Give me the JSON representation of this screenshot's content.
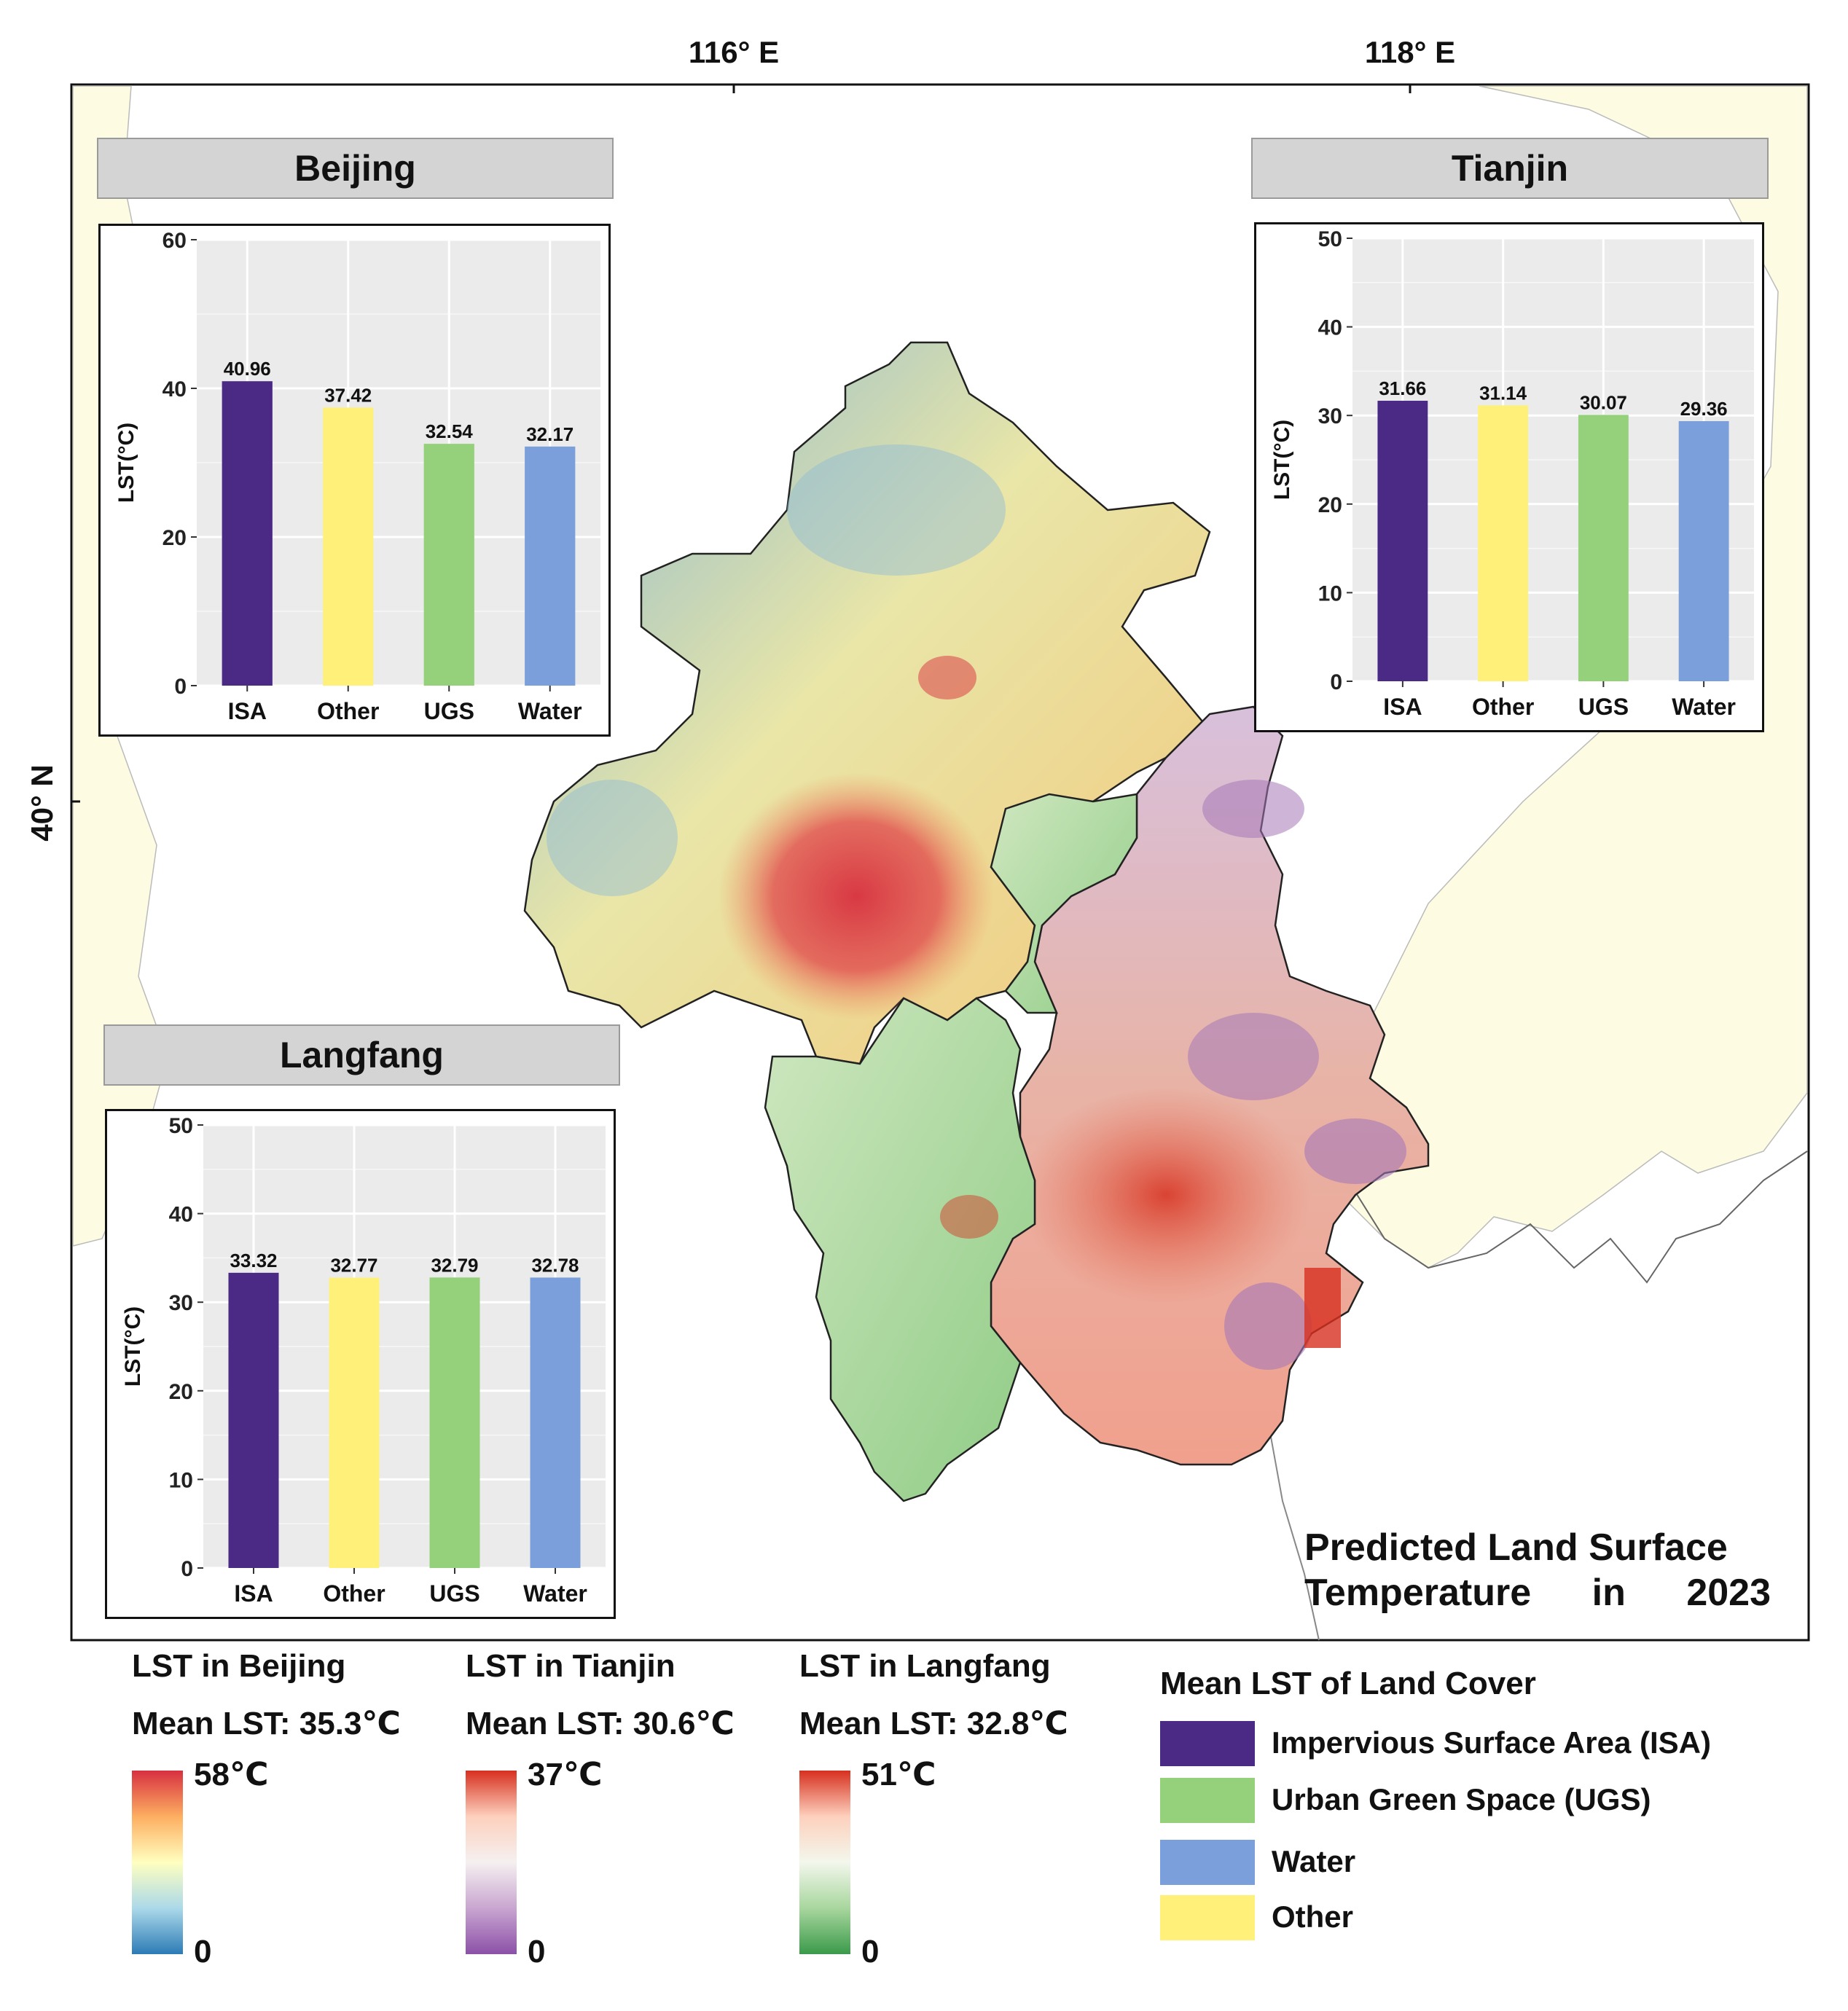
{
  "map": {
    "title_line1": "Predicted Land Surface",
    "title_line2": "Temperature in 2023",
    "lon_labels": [
      "116° E",
      "118° E"
    ],
    "lat_labels": [
      "40° N"
    ],
    "colors": {
      "land_background": "#fdfbe2",
      "frame": "#111111",
      "water": "#ffffff"
    }
  },
  "chart_data": [
    {
      "type": "bar",
      "title": "Beijing",
      "categories": [
        "ISA",
        "Other",
        "UGS",
        "Water"
      ],
      "values": [
        40.96,
        37.42,
        32.54,
        32.17
      ],
      "value_labels": [
        "40.96",
        "37.42",
        "32.54",
        "32.17"
      ],
      "ylabel": "LST(°C)",
      "xlabel": "",
      "ylim": [
        0,
        60
      ],
      "yticks": [
        0,
        20,
        40,
        60
      ],
      "colors": [
        "#4b2a86",
        "#fff07a",
        "#94d17a",
        "#7a9fda"
      ]
    },
    {
      "type": "bar",
      "title": "Tianjin",
      "categories": [
        "ISA",
        "Other",
        "UGS",
        "Water"
      ],
      "values": [
        31.66,
        31.14,
        30.07,
        29.36
      ],
      "value_labels": [
        "31.66",
        "31.14",
        "30.07",
        "29.36"
      ],
      "ylabel": "LST(°C)",
      "xlabel": "",
      "ylim": [
        0,
        50
      ],
      "yticks": [
        0,
        10,
        20,
        30,
        40,
        50
      ],
      "colors": [
        "#4b2a86",
        "#fff07a",
        "#94d17a",
        "#7a9fda"
      ]
    },
    {
      "type": "bar",
      "title": "Langfang",
      "categories": [
        "ISA",
        "Other",
        "UGS",
        "Water"
      ],
      "values": [
        33.32,
        32.77,
        32.79,
        32.78
      ],
      "value_labels": [
        "33.32",
        "32.77",
        "32.79",
        "32.78"
      ],
      "ylabel": "LST(°C)",
      "xlabel": "",
      "ylim": [
        0,
        50
      ],
      "yticks": [
        0,
        10,
        20,
        30,
        40,
        50
      ],
      "colors": [
        "#4b2a86",
        "#fff07a",
        "#94d17a",
        "#7a9fda"
      ]
    }
  ],
  "legends": {
    "beijing": {
      "title": "LST in Beijing",
      "mean": "Mean LST: 35.3℃",
      "max": "58℃",
      "min": "0",
      "colors": [
        "#d73040",
        "#fdae61",
        "#ffffbf",
        "#abd9e9",
        "#2c7bb6"
      ]
    },
    "tianjin": {
      "title": "LST in Tianjin",
      "mean": "Mean LST: 30.6℃",
      "max": "37℃",
      "min": "0",
      "colors": [
        "#d7301f",
        "#fdd0bd",
        "#f5f0f0",
        "#c9a6d1",
        "#8c50a8"
      ]
    },
    "langfang": {
      "title": "LST in Langfang",
      "mean": "Mean LST: 32.8℃",
      "max": "51℃",
      "min": "0",
      "colors": [
        "#d7301f",
        "#fdd0bd",
        "#f3f7ec",
        "#a8d69e",
        "#3a9a4a"
      ]
    },
    "land_cover": {
      "title": "Mean LST of Land Cover",
      "items": [
        {
          "label": "Impervious Surface Area (ISA)",
          "color": "#4b2a86"
        },
        {
          "label": "Urban Green Space (UGS)",
          "color": "#94d17a"
        },
        {
          "label": "Water",
          "color": "#7a9fda"
        },
        {
          "label": "Other",
          "color": "#fff07a"
        }
      ]
    }
  }
}
